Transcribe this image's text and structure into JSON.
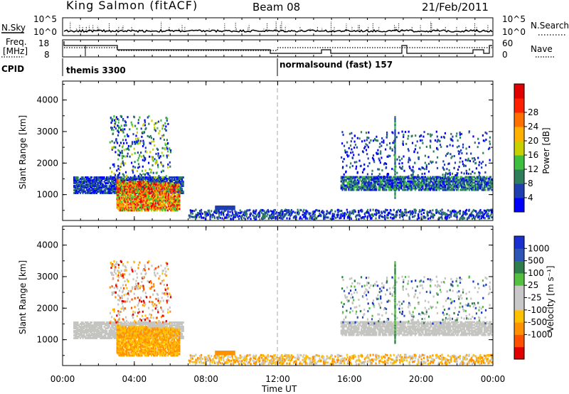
{
  "header": {
    "site": "King Salmon (fitACF)",
    "beam": "Beam 08",
    "date": "21/Feb/2011"
  },
  "top_panels": {
    "nsky_label": "N.Sky",
    "nsky_ticks": [
      "10^5",
      "10^0"
    ],
    "nsearch_label": "N.Search",
    "nsearch_ticks": [
      "10^5",
      "10^0"
    ],
    "freq_label_1": "Freq.",
    "freq_label_2": "[MHz]",
    "freq_ticks": [
      "18",
      "8"
    ],
    "nave_label": "Nave",
    "nave_ticks": [
      "60",
      "0"
    ],
    "cpid_label": "CPID",
    "cpid_segments": [
      "themis 3300",
      "normalsound (fast) 157"
    ]
  },
  "colors": {
    "power_scale": [
      "#0000ff",
      "#1f3fb0",
      "#2e7d5b",
      "#3fbf3f",
      "#c8d000",
      "#ffb000",
      "#ff7000",
      "#ff2000",
      "#e00000"
    ],
    "velocity_scale": [
      "#1a2fd0",
      "#2d55b5",
      "#2e7d4a",
      "#55c040",
      "#c8c8c8",
      "#c8c8c8",
      "#ffc000",
      "#ff9000",
      "#ff5000",
      "#e00000"
    ],
    "ground_scatter": "#c4c4c0"
  },
  "chart_data": [
    {
      "type": "heatmap",
      "panel": "power",
      "xlabel": "Time UT",
      "ylabel": "Slant Range [km]",
      "x_ticks": [
        "00:00",
        "04:00",
        "08:00",
        "12:00",
        "16:00",
        "20:00",
        "00:00"
      ],
      "x_range_hours": [
        0,
        24
      ],
      "y_range_km": [
        180,
        4600
      ],
      "y_ticks": [
        1000,
        2000,
        3000,
        4000
      ],
      "colorbar_label": "Power [dB]",
      "colorbar_ticks": [
        "4",
        "8",
        "12",
        "16",
        "20",
        "24",
        "28"
      ],
      "vertical_marker_hour": 12
    },
    {
      "type": "heatmap",
      "panel": "velocity",
      "xlabel": "Time UT",
      "ylabel": "Slant Range [km]",
      "x_ticks": [
        "00:00",
        "04:00",
        "08:00",
        "12:00",
        "16:00",
        "20:00",
        "00:00"
      ],
      "x_range_hours": [
        0,
        24
      ],
      "y_range_km": [
        180,
        4600
      ],
      "y_ticks": [
        1000,
        2000,
        3000,
        4000
      ],
      "colorbar_label": "Velocity [m s⁻¹]",
      "colorbar_ticks": [
        "1000",
        "500",
        "100",
        "25",
        "-25",
        "-100",
        "-500",
        "-1000"
      ],
      "vertical_marker_hour": 12
    }
  ]
}
